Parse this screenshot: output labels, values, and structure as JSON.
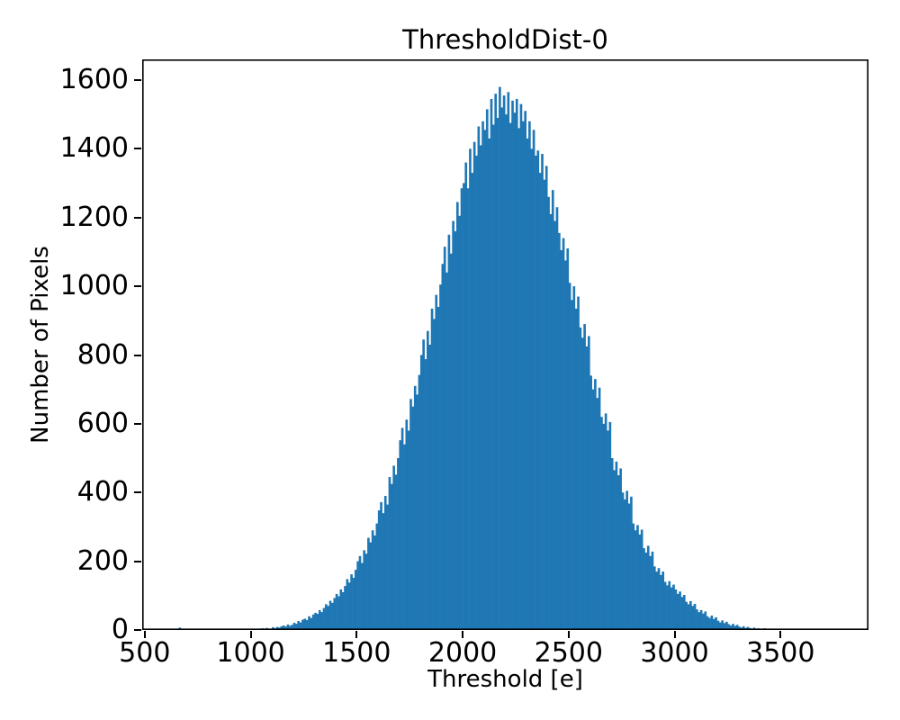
{
  "figure": {
    "title": "ThresholdDist-0",
    "xlabel": "Threshold [e]",
    "ylabel": "Number of Pixels"
  },
  "chart_data": {
    "type": "bar",
    "subtype": "histogram",
    "title": "ThresholdDist-0",
    "xlabel": "Threshold [e]",
    "ylabel": "Number of Pixels",
    "bar_color": "#1f77b4",
    "axis_color": "#000000",
    "background_color": "#ffffff",
    "grid": "off",
    "legend": "none",
    "xlim": [
      488,
      3915
    ],
    "ylim": [
      0,
      1660
    ],
    "x_ticks": [
      500,
      1000,
      1500,
      2000,
      2500,
      3000,
      3500
    ],
    "y_ticks": [
      0,
      200,
      400,
      600,
      800,
      1000,
      1200,
      1400,
      1600
    ],
    "distribution_summary": {
      "mean": 2180,
      "sigma": 340,
      "peak_count": 1580
    },
    "bin_start": 500,
    "bin_width": 10,
    "counts": [
      0,
      0,
      0,
      0,
      0,
      0,
      0,
      0,
      0,
      0,
      0,
      0,
      0,
      0,
      0,
      0,
      7,
      0,
      0,
      0,
      0,
      0,
      0,
      0,
      0,
      0,
      0,
      0,
      0,
      0,
      0,
      0,
      0,
      0,
      0,
      0,
      0,
      0,
      0,
      0,
      0,
      0,
      0,
      0,
      2,
      0,
      3,
      0,
      2,
      0,
      3,
      2,
      0,
      3,
      2,
      5,
      3,
      6,
      4,
      3,
      8,
      5,
      9,
      7,
      11,
      13,
      10,
      16,
      12,
      15,
      21,
      18,
      26,
      22,
      30,
      33,
      29,
      40,
      35,
      45,
      50,
      47,
      58,
      52,
      64,
      75,
      70,
      85,
      79,
      93,
      105,
      98,
      118,
      110,
      128,
      148,
      138,
      162,
      152,
      175,
      200,
      215,
      195,
      232,
      222,
      268,
      255,
      290,
      275,
      310,
      348,
      372,
      340,
      390,
      365,
      445,
      425,
      478,
      452,
      500,
      552,
      588,
      540,
      612,
      580,
      672,
      650,
      710,
      685,
      742,
      800,
      845,
      788,
      870,
      830,
      935,
      905,
      975,
      940,
      1005,
      1065,
      1115,
      1040,
      1150,
      1095,
      1190,
      1160,
      1245,
      1205,
      1285,
      1300,
      1360,
      1285,
      1400,
      1330,
      1420,
      1380,
      1465,
      1410,
      1480,
      1455,
      1515,
      1430,
      1545,
      1470,
      1560,
      1490,
      1580,
      1520,
      1555,
      1500,
      1565,
      1475,
      1540,
      1505,
      1545,
      1460,
      1530,
      1480,
      1510,
      1430,
      1480,
      1400,
      1455,
      1380,
      1395,
      1330,
      1385,
      1310,
      1350,
      1260,
      1210,
      1280,
      1190,
      1230,
      1155,
      1105,
      1140,
      1075,
      1110,
      1010,
      960,
      1000,
      935,
      970,
      880,
      850,
      890,
      825,
      855,
      740,
      700,
      730,
      675,
      705,
      620,
      600,
      630,
      580,
      605,
      500,
      465,
      490,
      450,
      470,
      400,
      380,
      405,
      368,
      388,
      310,
      290,
      305,
      278,
      292,
      238,
      225,
      245,
      215,
      228,
      185,
      170,
      180,
      160,
      170,
      140,
      130,
      142,
      124,
      132,
      118,
      105,
      112,
      96,
      102,
      82,
      75,
      84,
      70,
      76,
      60,
      52,
      58,
      48,
      54,
      40,
      35,
      42,
      32,
      37,
      27,
      22,
      28,
      20,
      24,
      17,
      13,
      18,
      12,
      15,
      10,
      7,
      11,
      6,
      9,
      6,
      4,
      7,
      3,
      5,
      4,
      2,
      5,
      2,
      3,
      2,
      1,
      3,
      1,
      2,
      2,
      0,
      1,
      2,
      0,
      1,
      0,
      2,
      0,
      1,
      1,
      0,
      0,
      1,
      0,
      0,
      1,
      0,
      0,
      1,
      0,
      1,
      0,
      0,
      2,
      0,
      0,
      0,
      0,
      0,
      0,
      0,
      0,
      0,
      0,
      0,
      0,
      0,
      0,
      0
    ]
  }
}
